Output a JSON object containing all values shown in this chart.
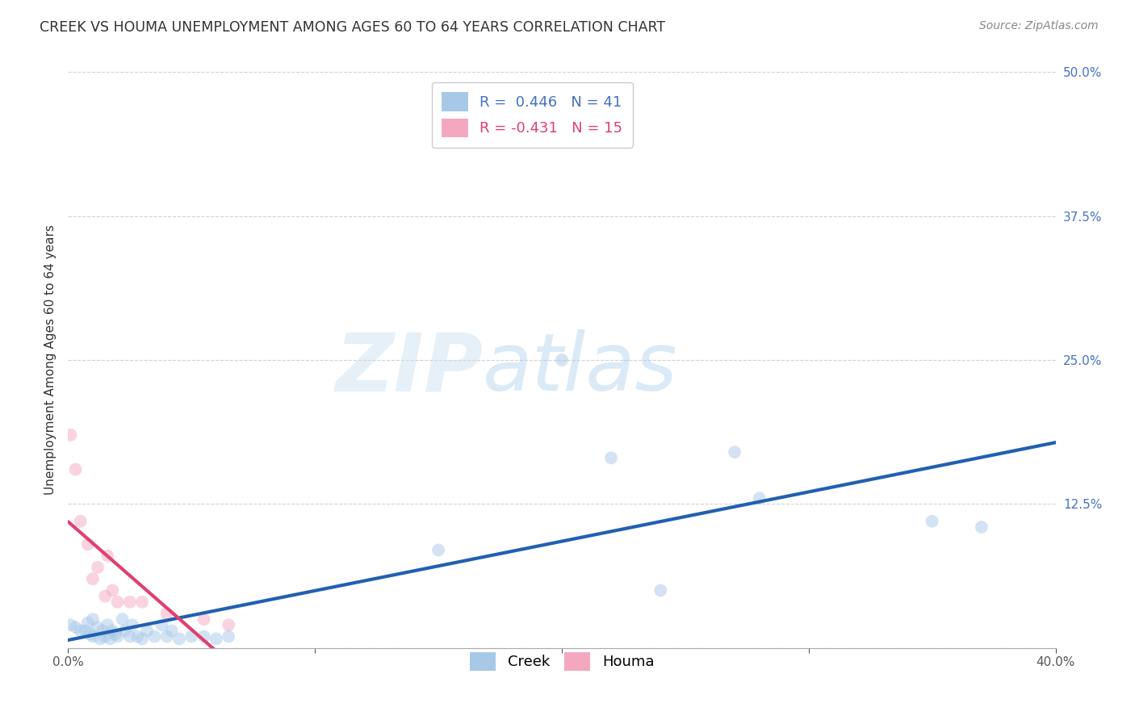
{
  "title": "CREEK VS HOUMA UNEMPLOYMENT AMONG AGES 60 TO 64 YEARS CORRELATION CHART",
  "source": "Source: ZipAtlas.com",
  "ylabel": "Unemployment Among Ages 60 to 64 years",
  "xlim": [
    0.0,
    0.4
  ],
  "ylim": [
    0.0,
    0.5
  ],
  "xticks": [
    0.0,
    0.1,
    0.2,
    0.3,
    0.4
  ],
  "xticklabels": [
    "0.0%",
    "",
    "",
    "",
    "40.0%"
  ],
  "yticks": [
    0.0,
    0.125,
    0.25,
    0.375,
    0.5
  ],
  "yticklabels": [
    "",
    "12.5%",
    "25.0%",
    "37.5%",
    "50.0%"
  ],
  "creek_color": "#a8c8e8",
  "houma_color": "#f4a8c0",
  "creek_line_color": "#2060b0",
  "houma_line_color": "#e04070",
  "creek_R": 0.446,
  "creek_N": 41,
  "houma_R": -0.431,
  "houma_N": 15,
  "watermark_zip": "ZIP",
  "watermark_atlas": "atlas",
  "grid_color": "#cccccc",
  "creek_x": [
    0.001,
    0.003,
    0.005,
    0.007,
    0.008,
    0.009,
    0.01,
    0.01,
    0.012,
    0.013,
    0.014,
    0.015,
    0.016,
    0.017,
    0.018,
    0.019,
    0.02,
    0.022,
    0.023,
    0.025,
    0.026,
    0.028,
    0.03,
    0.032,
    0.035,
    0.038,
    0.04,
    0.042,
    0.045,
    0.05,
    0.055,
    0.06,
    0.065,
    0.15,
    0.2,
    0.22,
    0.24,
    0.27,
    0.28,
    0.35,
    0.37
  ],
  "creek_y": [
    0.02,
    0.018,
    0.015,
    0.015,
    0.022,
    0.012,
    0.01,
    0.025,
    0.018,
    0.008,
    0.015,
    0.01,
    0.02,
    0.008,
    0.015,
    0.012,
    0.01,
    0.025,
    0.015,
    0.01,
    0.02,
    0.01,
    0.008,
    0.015,
    0.01,
    0.02,
    0.01,
    0.015,
    0.008,
    0.01,
    0.01,
    0.008,
    0.01,
    0.085,
    0.25,
    0.165,
    0.05,
    0.17,
    0.13,
    0.11,
    0.105
  ],
  "houma_x": [
    0.001,
    0.003,
    0.005,
    0.008,
    0.01,
    0.012,
    0.015,
    0.016,
    0.018,
    0.02,
    0.025,
    0.03,
    0.04,
    0.055,
    0.065
  ],
  "houma_y": [
    0.185,
    0.155,
    0.11,
    0.09,
    0.06,
    0.07,
    0.045,
    0.08,
    0.05,
    0.04,
    0.04,
    0.04,
    0.03,
    0.025,
    0.02
  ],
  "marker_size": 130,
  "marker_alpha": 0.5,
  "line_width": 3.0
}
